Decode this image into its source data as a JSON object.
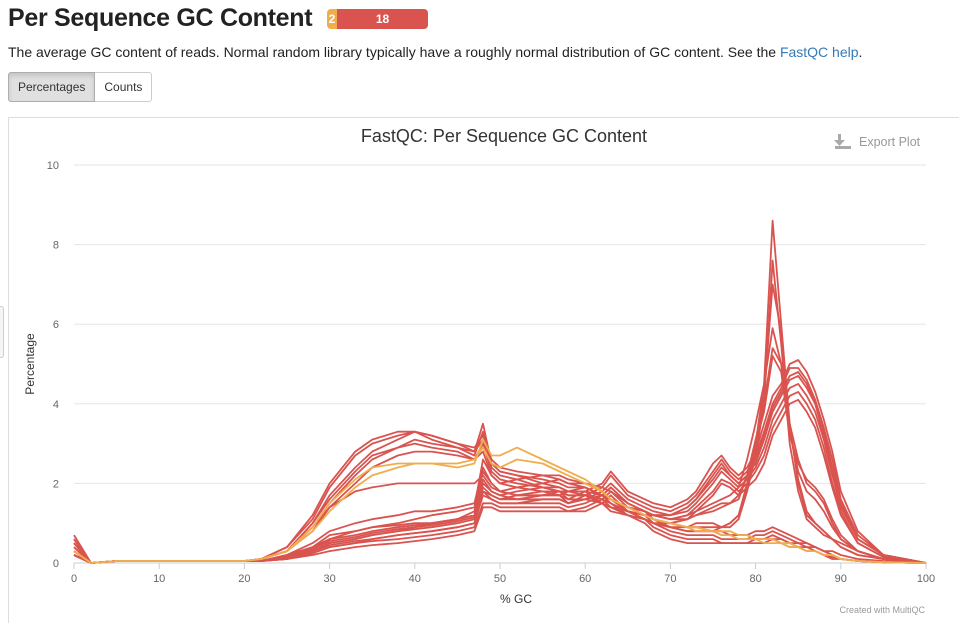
{
  "page": {
    "title": "Per Sequence GC Content",
    "badge_warn": "2",
    "badge_fail": "18",
    "description": "The average GC content of reads. Normal random library typically have a roughly normal distribution of GC content. See the ",
    "help_link": "FastQC help",
    "description_end": ".",
    "tab_percentages": "Percentages",
    "tab_counts": "Counts",
    "export_label": "Export Plot",
    "credit": "Created with MultiQC"
  },
  "colors": {
    "fail": "#d9534f",
    "warn": "#f0ad4e",
    "grid": "#e6e6e6",
    "link": "#337ab7"
  },
  "chart_data": {
    "type": "line",
    "title": "FastQC: Per Sequence GC Content",
    "xlabel": "% GC",
    "ylabel": "Percentage",
    "xlim": [
      0,
      100
    ],
    "ylim": [
      0,
      10
    ],
    "xticks": [
      0,
      10,
      20,
      30,
      40,
      50,
      60,
      70,
      80,
      90,
      100
    ],
    "yticks": [
      0,
      2,
      4,
      6,
      8,
      10
    ],
    "grid": true,
    "x": [
      0,
      2,
      5,
      10,
      15,
      20,
      22,
      25,
      28,
      30,
      33,
      35,
      38,
      40,
      42,
      45,
      47,
      48,
      49,
      50,
      52,
      55,
      57,
      58,
      60,
      62,
      63,
      65,
      67,
      68,
      70,
      72,
      73,
      75,
      76,
      77,
      78,
      79,
      80,
      81,
      82,
      83,
      84,
      85,
      86,
      87,
      88,
      89,
      90,
      92,
      95,
      100
    ],
    "series": [
      {
        "status": "fail",
        "values": [
          0.7,
          0.0,
          0.05,
          0.05,
          0.05,
          0.05,
          0.1,
          0.4,
          1.2,
          2.0,
          2.8,
          3.1,
          3.3,
          3.3,
          3.2,
          3.0,
          2.8,
          3.5,
          2.5,
          2.3,
          2.2,
          2.0,
          1.9,
          1.8,
          1.8,
          1.5,
          1.3,
          1.2,
          1.1,
          1.0,
          1.0,
          0.9,
          1.0,
          1.0,
          0.9,
          1.0,
          1.2,
          2.0,
          3.0,
          4.5,
          8.6,
          6.0,
          3.5,
          2.0,
          1.2,
          1.0,
          0.8,
          0.6,
          0.5,
          0.3,
          0.1,
          0.0
        ]
      },
      {
        "status": "fail",
        "values": [
          0.6,
          0.0,
          0.05,
          0.05,
          0.05,
          0.05,
          0.1,
          0.4,
          1.1,
          1.9,
          2.7,
          3.0,
          3.2,
          3.3,
          3.1,
          2.9,
          2.7,
          3.3,
          2.4,
          2.2,
          2.1,
          1.9,
          1.8,
          1.8,
          1.7,
          1.5,
          1.4,
          1.2,
          1.1,
          1.0,
          0.9,
          0.9,
          0.9,
          0.9,
          0.9,
          0.9,
          1.1,
          1.8,
          2.7,
          4.0,
          7.6,
          5.5,
          3.0,
          1.8,
          1.1,
          0.9,
          0.7,
          0.6,
          0.4,
          0.2,
          0.1,
          0.0
        ]
      },
      {
        "status": "fail",
        "values": [
          0.5,
          0.0,
          0.05,
          0.05,
          0.05,
          0.05,
          0.1,
          0.3,
          1.0,
          1.6,
          2.3,
          2.7,
          2.9,
          3.0,
          2.9,
          2.8,
          2.6,
          2.8,
          2.2,
          2.0,
          1.9,
          1.8,
          1.7,
          1.8,
          1.9,
          1.7,
          1.6,
          1.4,
          1.3,
          1.2,
          1.1,
          1.2,
          1.3,
          1.5,
          1.6,
          1.7,
          1.9,
          2.6,
          3.5,
          4.5,
          5.9,
          5.0,
          3.5,
          2.6,
          2.0,
          1.8,
          1.5,
          1.0,
          0.6,
          0.3,
          0.1,
          0.0
        ]
      },
      {
        "status": "fail",
        "values": [
          0.4,
          0.0,
          0.05,
          0.05,
          0.05,
          0.05,
          0.1,
          0.3,
          0.8,
          1.4,
          2.0,
          2.4,
          2.7,
          2.8,
          2.8,
          2.7,
          2.6,
          3.0,
          2.3,
          2.1,
          2.0,
          1.9,
          1.8,
          1.7,
          1.7,
          1.6,
          1.4,
          1.3,
          1.2,
          1.1,
          1.0,
          1.1,
          1.2,
          1.3,
          1.4,
          1.5,
          1.7,
          2.2,
          3.0,
          3.8,
          5.2,
          4.8,
          3.2,
          2.5,
          2.1,
          1.9,
          1.6,
          1.1,
          0.7,
          0.3,
          0.1,
          0.0
        ]
      },
      {
        "status": "fail",
        "values": [
          0.3,
          0.0,
          0.05,
          0.05,
          0.05,
          0.05,
          0.05,
          0.2,
          0.4,
          0.7,
          0.8,
          0.9,
          0.95,
          1.0,
          1.0,
          1.1,
          1.3,
          2.3,
          2.0,
          1.8,
          1.7,
          1.7,
          1.8,
          1.6,
          1.8,
          2.0,
          2.3,
          1.8,
          1.6,
          1.5,
          1.4,
          1.6,
          1.8,
          2.5,
          2.7,
          2.4,
          2.2,
          2.4,
          2.8,
          3.5,
          4.2,
          4.5,
          5.0,
          5.1,
          4.8,
          4.3,
          3.6,
          2.8,
          1.8,
          0.8,
          0.2,
          0.0
        ]
      },
      {
        "status": "fail",
        "values": [
          0.3,
          0.0,
          0.05,
          0.05,
          0.05,
          0.05,
          0.05,
          0.2,
          0.35,
          0.6,
          0.7,
          0.8,
          0.9,
          0.95,
          1.0,
          1.1,
          1.2,
          2.1,
          1.8,
          1.7,
          1.6,
          1.7,
          1.7,
          1.5,
          1.7,
          1.9,
          2.2,
          1.7,
          1.5,
          1.4,
          1.3,
          1.5,
          1.7,
          2.3,
          2.6,
          2.3,
          2.1,
          2.3,
          2.7,
          3.3,
          4.0,
          4.4,
          4.9,
          4.9,
          4.6,
          4.1,
          3.4,
          2.6,
          1.6,
          0.7,
          0.2,
          0.0
        ]
      },
      {
        "status": "fail",
        "values": [
          0.3,
          0.0,
          0.05,
          0.05,
          0.05,
          0.05,
          0.05,
          0.15,
          0.3,
          0.5,
          0.6,
          0.7,
          0.8,
          0.85,
          0.9,
          1.0,
          1.1,
          1.9,
          1.7,
          1.6,
          1.6,
          1.6,
          1.6,
          1.5,
          1.6,
          1.8,
          2.0,
          1.6,
          1.4,
          1.3,
          1.2,
          1.4,
          1.6,
          2.1,
          2.4,
          2.2,
          2.0,
          2.2,
          2.5,
          3.1,
          3.8,
          4.2,
          4.6,
          4.7,
          4.4,
          4.0,
          3.3,
          2.4,
          1.5,
          0.6,
          0.2,
          0.0
        ]
      },
      {
        "status": "fail",
        "values": [
          0.3,
          0.0,
          0.05,
          0.05,
          0.05,
          0.05,
          0.05,
          0.15,
          0.3,
          0.45,
          0.55,
          0.6,
          0.7,
          0.75,
          0.8,
          0.9,
          1.0,
          1.7,
          1.6,
          1.5,
          1.5,
          1.5,
          1.5,
          1.4,
          1.5,
          1.7,
          1.9,
          1.5,
          1.3,
          1.2,
          1.2,
          1.3,
          1.5,
          2.0,
          2.3,
          2.1,
          1.9,
          2.1,
          2.4,
          2.9,
          3.6,
          4.0,
          4.4,
          4.5,
          4.2,
          3.8,
          3.1,
          2.2,
          1.4,
          0.6,
          0.2,
          0.0
        ]
      },
      {
        "status": "fail",
        "values": [
          0.2,
          0.0,
          0.05,
          0.05,
          0.05,
          0.05,
          0.05,
          0.1,
          0.25,
          0.4,
          0.5,
          0.55,
          0.6,
          0.65,
          0.7,
          0.8,
          0.9,
          1.5,
          1.5,
          1.4,
          1.4,
          1.4,
          1.4,
          1.3,
          1.4,
          1.6,
          1.8,
          1.4,
          1.2,
          1.2,
          1.1,
          1.2,
          1.4,
          1.8,
          2.1,
          2.0,
          1.8,
          2.0,
          2.3,
          2.7,
          3.4,
          3.8,
          4.2,
          4.3,
          4.0,
          3.6,
          2.9,
          2.0,
          1.3,
          0.5,
          0.15,
          0.0
        ]
      },
      {
        "status": "fail",
        "values": [
          0.2,
          0.0,
          0.05,
          0.05,
          0.05,
          0.05,
          0.05,
          0.1,
          0.2,
          0.3,
          0.4,
          0.45,
          0.5,
          0.55,
          0.6,
          0.7,
          0.8,
          1.4,
          1.4,
          1.3,
          1.3,
          1.3,
          1.3,
          1.3,
          1.3,
          1.5,
          1.7,
          1.3,
          1.2,
          1.1,
          1.0,
          1.1,
          1.3,
          1.7,
          2.0,
          1.9,
          1.7,
          1.9,
          2.1,
          2.5,
          3.2,
          3.6,
          4.0,
          4.1,
          3.8,
          3.4,
          2.7,
          1.9,
          1.2,
          0.5,
          0.15,
          0.0
        ]
      },
      {
        "status": "fail",
        "values": [
          0.5,
          0.0,
          0.05,
          0.05,
          0.05,
          0.05,
          0.1,
          0.3,
          0.9,
          1.4,
          1.8,
          1.9,
          2.0,
          2.0,
          2.0,
          2.0,
          2.0,
          2.2,
          1.9,
          1.8,
          1.7,
          1.7,
          1.7,
          1.6,
          1.6,
          1.5,
          1.4,
          1.3,
          1.2,
          1.1,
          1.0,
          0.9,
          0.9,
          0.8,
          0.8,
          0.7,
          0.7,
          0.7,
          0.6,
          0.6,
          0.6,
          0.6,
          0.5,
          0.5,
          0.4,
          0.4,
          0.3,
          0.3,
          0.2,
          0.1,
          0.05,
          0.0
        ]
      },
      {
        "status": "fail",
        "values": [
          0.4,
          0.0,
          0.05,
          0.05,
          0.05,
          0.05,
          0.05,
          0.2,
          0.5,
          0.8,
          1.0,
          1.1,
          1.2,
          1.3,
          1.3,
          1.4,
          1.5,
          2.4,
          2.0,
          1.8,
          1.9,
          2.0,
          2.1,
          2.0,
          2.0,
          1.9,
          1.8,
          1.5,
          1.3,
          1.1,
          0.9,
          0.8,
          0.8,
          0.8,
          0.7,
          0.7,
          0.7,
          0.7,
          0.8,
          0.8,
          0.9,
          0.8,
          0.7,
          0.6,
          0.5,
          0.4,
          0.3,
          0.2,
          0.1,
          0.05,
          0.02,
          0.0
        ]
      },
      {
        "status": "fail",
        "values": [
          0.3,
          0.0,
          0.05,
          0.05,
          0.05,
          0.05,
          0.05,
          0.15,
          0.4,
          0.6,
          0.8,
          0.9,
          1.0,
          1.1,
          1.2,
          1.3,
          1.4,
          2.6,
          2.2,
          2.0,
          2.1,
          2.2,
          2.2,
          2.1,
          2.0,
          1.8,
          1.6,
          1.4,
          1.2,
          1.0,
          0.8,
          0.7,
          0.7,
          0.7,
          0.6,
          0.6,
          0.6,
          0.6,
          0.7,
          0.7,
          0.8,
          0.7,
          0.6,
          0.5,
          0.5,
          0.4,
          0.3,
          0.2,
          0.1,
          0.05,
          0.02,
          0.0
        ]
      },
      {
        "status": "fail",
        "values": [
          0.2,
          0.0,
          0.05,
          0.05,
          0.05,
          0.05,
          0.05,
          0.1,
          0.3,
          0.5,
          0.6,
          0.7,
          0.8,
          0.9,
          1.0,
          1.1,
          1.2,
          2.0,
          1.8,
          1.7,
          1.8,
          1.9,
          1.9,
          1.8,
          1.8,
          1.7,
          1.6,
          1.3,
          1.1,
          0.9,
          0.7,
          0.6,
          0.6,
          0.6,
          0.5,
          0.5,
          0.5,
          0.5,
          0.6,
          0.6,
          0.7,
          0.6,
          0.5,
          0.4,
          0.4,
          0.3,
          0.2,
          0.15,
          0.1,
          0.05,
          0.02,
          0.0
        ]
      },
      {
        "status": "fail",
        "values": [
          0.2,
          0.0,
          0.05,
          0.05,
          0.05,
          0.05,
          0.05,
          0.1,
          0.25,
          0.4,
          0.5,
          0.6,
          0.7,
          0.75,
          0.8,
          0.9,
          1.0,
          1.8,
          1.7,
          1.6,
          1.7,
          1.8,
          1.8,
          1.7,
          1.7,
          1.6,
          1.5,
          1.2,
          1.0,
          0.8,
          0.6,
          0.5,
          0.5,
          0.5,
          0.5,
          0.5,
          0.5,
          0.5,
          0.5,
          0.5,
          0.6,
          0.5,
          0.4,
          0.4,
          0.3,
          0.3,
          0.2,
          0.1,
          0.1,
          0.05,
          0.02,
          0.0
        ]
      },
      {
        "status": "fail",
        "values": [
          0.6,
          0.0,
          0.05,
          0.05,
          0.05,
          0.05,
          0.1,
          0.3,
          1.0,
          1.7,
          2.4,
          2.8,
          3.1,
          3.3,
          3.2,
          3.0,
          2.9,
          3.2,
          2.6,
          2.4,
          2.3,
          2.2,
          2.1,
          2.0,
          1.9,
          1.7,
          1.5,
          1.3,
          1.1,
          1.0,
          0.9,
          0.8,
          0.8,
          0.8,
          0.9,
          1.0,
          1.2,
          1.9,
          2.9,
          4.2,
          7.0,
          5.8,
          3.4,
          2.1,
          1.3,
          1.0,
          0.8,
          0.6,
          0.4,
          0.2,
          0.1,
          0.0
        ]
      },
      {
        "status": "fail",
        "values": [
          0.5,
          0.0,
          0.05,
          0.05,
          0.05,
          0.05,
          0.1,
          0.3,
          0.9,
          1.5,
          2.2,
          2.6,
          2.9,
          3.1,
          3.0,
          2.9,
          2.8,
          3.1,
          2.5,
          2.3,
          2.2,
          2.1,
          2.0,
          1.9,
          1.9,
          1.7,
          1.6,
          1.4,
          1.3,
          1.2,
          1.1,
          1.1,
          1.2,
          1.4,
          1.5,
          1.5,
          1.6,
          2.2,
          3.1,
          4.0,
          5.4,
          5.0,
          3.3,
          2.3,
          1.8,
          1.6,
          1.3,
          0.9,
          0.6,
          0.3,
          0.1,
          0.0
        ]
      },
      {
        "status": "fail",
        "values": [
          0.3,
          0.0,
          0.05,
          0.05,
          0.05,
          0.05,
          0.05,
          0.15,
          0.35,
          0.55,
          0.65,
          0.75,
          0.85,
          0.9,
          0.95,
          1.05,
          1.15,
          1.8,
          1.6,
          1.5,
          1.5,
          1.6,
          1.6,
          1.5,
          1.6,
          1.7,
          1.9,
          1.5,
          1.3,
          1.2,
          1.2,
          1.4,
          1.6,
          2.2,
          2.5,
          2.2,
          2.0,
          2.2,
          2.6,
          3.2,
          3.9,
          4.3,
          4.7,
          4.8,
          4.5,
          4.0,
          3.2,
          2.3,
          1.5,
          0.6,
          0.2,
          0.0
        ]
      },
      {
        "status": "warn",
        "values": [
          0.3,
          0.0,
          0.05,
          0.05,
          0.05,
          0.05,
          0.1,
          0.3,
          0.9,
          1.5,
          2.1,
          2.4,
          2.5,
          2.5,
          2.5,
          2.4,
          2.5,
          3.1,
          2.7,
          2.7,
          2.9,
          2.6,
          2.4,
          2.3,
          2.1,
          1.8,
          1.6,
          1.4,
          1.2,
          1.1,
          1.0,
          0.9,
          0.9,
          0.8,
          0.8,
          0.8,
          0.7,
          0.7,
          0.6,
          0.6,
          0.6,
          0.5,
          0.5,
          0.4,
          0.3,
          0.3,
          0.2,
          0.2,
          0.1,
          0.05,
          0.02,
          0.0
        ]
      },
      {
        "status": "warn",
        "values": [
          0.3,
          0.0,
          0.05,
          0.05,
          0.05,
          0.05,
          0.1,
          0.3,
          0.8,
          1.3,
          1.9,
          2.2,
          2.4,
          2.5,
          2.5,
          2.5,
          2.6,
          2.9,
          2.5,
          2.4,
          2.6,
          2.5,
          2.3,
          2.2,
          2.0,
          1.8,
          1.6,
          1.4,
          1.2,
          1.1,
          1.0,
          0.9,
          0.8,
          0.8,
          0.7,
          0.7,
          0.6,
          0.6,
          0.6,
          0.5,
          0.5,
          0.5,
          0.4,
          0.4,
          0.3,
          0.3,
          0.2,
          0.2,
          0.1,
          0.05,
          0.02,
          0.0
        ]
      }
    ]
  }
}
